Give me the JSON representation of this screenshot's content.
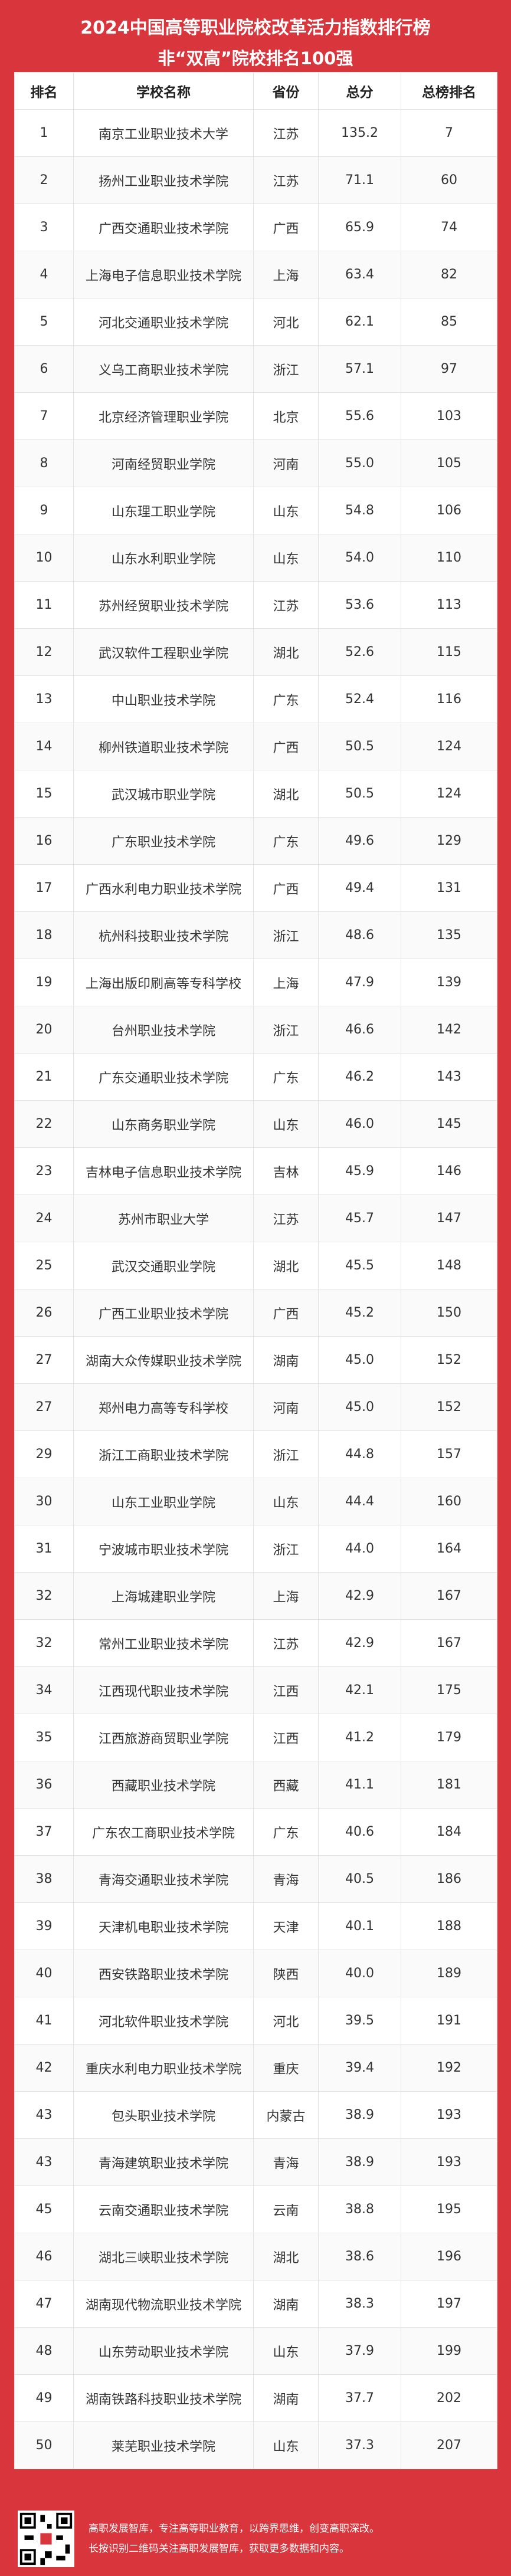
{
  "header": {
    "title": "2024中国高等职业院校改革活力指数排行榜",
    "subtitle": "非“双高”院校排名100强"
  },
  "table": {
    "columns": [
      "排名",
      "学校名称",
      "省份",
      "总分",
      "总榜排名"
    ],
    "rows": [
      [
        "1",
        "南京工业职业技术大学",
        "江苏",
        "135.2",
        "7"
      ],
      [
        "2",
        "扬州工业职业技术学院",
        "江苏",
        "71.1",
        "60"
      ],
      [
        "3",
        "广西交通职业技术学院",
        "广西",
        "65.9",
        "74"
      ],
      [
        "4",
        "上海电子信息职业技术学院",
        "上海",
        "63.4",
        "82"
      ],
      [
        "5",
        "河北交通职业技术学院",
        "河北",
        "62.1",
        "85"
      ],
      [
        "6",
        "义乌工商职业技术学院",
        "浙江",
        "57.1",
        "97"
      ],
      [
        "7",
        "北京经济管理职业学院",
        "北京",
        "55.6",
        "103"
      ],
      [
        "8",
        "河南经贸职业学院",
        "河南",
        "55.0",
        "105"
      ],
      [
        "9",
        "山东理工职业学院",
        "山东",
        "54.8",
        "106"
      ],
      [
        "10",
        "山东水利职业学院",
        "山东",
        "54.0",
        "110"
      ],
      [
        "11",
        "苏州经贸职业技术学院",
        "江苏",
        "53.6",
        "113"
      ],
      [
        "12",
        "武汉软件工程职业学院",
        "湖北",
        "52.6",
        "115"
      ],
      [
        "13",
        "中山职业技术学院",
        "广东",
        "52.4",
        "116"
      ],
      [
        "14",
        "柳州铁道职业技术学院",
        "广西",
        "50.5",
        "124"
      ],
      [
        "15",
        "武汉城市职业学院",
        "湖北",
        "50.5",
        "124"
      ],
      [
        "16",
        "广东职业技术学院",
        "广东",
        "49.6",
        "129"
      ],
      [
        "17",
        "广西水利电力职业技术学院",
        "广西",
        "49.4",
        "131"
      ],
      [
        "18",
        "杭州科技职业技术学院",
        "浙江",
        "48.6",
        "135"
      ],
      [
        "19",
        "上海出版印刷高等专科学校",
        "上海",
        "47.9",
        "139"
      ],
      [
        "20",
        "台州职业技术学院",
        "浙江",
        "46.6",
        "142"
      ],
      [
        "21",
        "广东交通职业技术学院",
        "广东",
        "46.2",
        "143"
      ],
      [
        "22",
        "山东商务职业学院",
        "山东",
        "46.0",
        "145"
      ],
      [
        "23",
        "吉林电子信息职业技术学院",
        "吉林",
        "45.9",
        "146"
      ],
      [
        "24",
        "苏州市职业大学",
        "江苏",
        "45.7",
        "147"
      ],
      [
        "25",
        "武汉交通职业学院",
        "湖北",
        "45.5",
        "148"
      ],
      [
        "26",
        "广西工业职业技术学院",
        "广西",
        "45.2",
        "150"
      ],
      [
        "27",
        "湖南大众传媒职业技术学院",
        "湖南",
        "45.0",
        "152"
      ],
      [
        "27",
        "郑州电力高等专科学校",
        "河南",
        "45.0",
        "152"
      ],
      [
        "29",
        "浙江工商职业技术学院",
        "浙江",
        "44.8",
        "157"
      ],
      [
        "30",
        "山东工业职业学院",
        "山东",
        "44.4",
        "160"
      ],
      [
        "31",
        "宁波城市职业技术学院",
        "浙江",
        "44.0",
        "164"
      ],
      [
        "32",
        "上海城建职业学院",
        "上海",
        "42.9",
        "167"
      ],
      [
        "32",
        "常州工业职业技术学院",
        "江苏",
        "42.9",
        "167"
      ],
      [
        "34",
        "江西现代职业技术学院",
        "江西",
        "42.1",
        "175"
      ],
      [
        "35",
        "江西旅游商贸职业学院",
        "江西",
        "41.2",
        "179"
      ],
      [
        "36",
        "西藏职业技术学院",
        "西藏",
        "41.1",
        "181"
      ],
      [
        "37",
        "广东农工商职业技术学院",
        "广东",
        "40.6",
        "184"
      ],
      [
        "38",
        "青海交通职业技术学院",
        "青海",
        "40.5",
        "186"
      ],
      [
        "39",
        "天津机电职业技术学院",
        "天津",
        "40.1",
        "188"
      ],
      [
        "40",
        "西安铁路职业技术学院",
        "陕西",
        "40.0",
        "189"
      ],
      [
        "41",
        "河北软件职业技术学院",
        "河北",
        "39.5",
        "191"
      ],
      [
        "42",
        "重庆水利电力职业技术学院",
        "重庆",
        "39.4",
        "192"
      ],
      [
        "43",
        "包头职业技术学院",
        "内蒙古",
        "38.9",
        "193"
      ],
      [
        "43",
        "青海建筑职业技术学院",
        "青海",
        "38.9",
        "193"
      ],
      [
        "45",
        "云南交通职业技术学院",
        "云南",
        "38.8",
        "195"
      ],
      [
        "46",
        "湖北三峡职业技术学院",
        "湖北",
        "38.6",
        "196"
      ],
      [
        "47",
        "湖南现代物流职业技术学院",
        "湖南",
        "38.3",
        "197"
      ],
      [
        "48",
        "山东劳动职业技术学院",
        "山东",
        "37.9",
        "199"
      ],
      [
        "49",
        "湖南铁路科技职业技术学院",
        "湖南",
        "37.7",
        "202"
      ],
      [
        "50",
        "莱芜职业技术学院",
        "山东",
        "37.3",
        "207"
      ]
    ]
  },
  "footer": {
    "line1": "高职发展智库，专注高等职业教育，以跨界思维，创变高职深改。",
    "line2": "长按识别二维码关注高职发展智库，获取更多数据和内容。"
  }
}
